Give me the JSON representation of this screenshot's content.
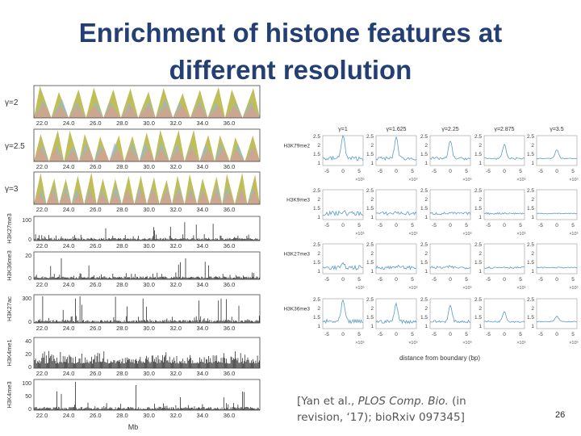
{
  "slide": {
    "title_line1": "Enrichment of histone features at",
    "title_line2": "different resolution",
    "citation_line1_pre": "[Yan et al., ",
    "citation_journal": "PLOS Comp. Bio.",
    "citation_line1_post": " (in",
    "citation_line2": "revision, ‘17); bioRxiv 097345]",
    "page_number": "26",
    "title_color": "#243f73"
  },
  "left_figure": {
    "x_ticks": [
      "22.0",
      "24.0",
      "26.0",
      "28.0",
      "30.0",
      "32.0",
      "34.0",
      "36.0"
    ],
    "x_label": "Mb",
    "domain_tracks": [
      {
        "label": "γ=2"
      },
      {
        "label": "γ=2.5"
      },
      {
        "label": "γ=3"
      }
    ],
    "signal_tracks": [
      {
        "label": "H3K27me3",
        "y_ticks": [
          "100",
          "0"
        ]
      },
      {
        "label": "H3K36me3",
        "y_ticks": [
          "20",
          "0"
        ]
      },
      {
        "label": "H3K27ac",
        "y_ticks": [
          "300",
          "0"
        ]
      },
      {
        "label": "H3K4me1",
        "y_ticks": [
          "40",
          "20",
          "0"
        ]
      },
      {
        "label": "H3K4me3",
        "y_ticks": [
          "100",
          "50",
          "0"
        ]
      }
    ],
    "colors": {
      "olive": "#b5b33c",
      "blue": "#8fb8d8",
      "salmon": "#e89a80"
    }
  },
  "right_figure": {
    "columns": [
      "γ=1",
      "γ=1.625",
      "γ=2.25",
      "γ=2.875",
      "γ=3.5"
    ],
    "rows": [
      "H3K79me2",
      "H3K9me3",
      "H3K27me3",
      "H3K36me3"
    ],
    "y_ticks": [
      "2.5",
      "2",
      "1.5",
      "1"
    ],
    "x_ticks": [
      "-5",
      "0",
      "5"
    ],
    "x_multiplier": "×10⁵",
    "y_label": "normalized peak density",
    "x_label": "distance from boundary (bp)",
    "line_color": "#5a9ac8"
  }
}
